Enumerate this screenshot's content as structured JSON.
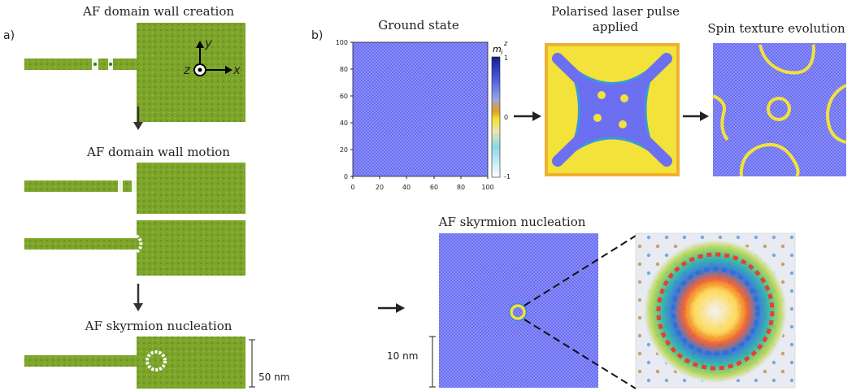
{
  "panel_a": {
    "label": "a)",
    "titles": {
      "creation": "AF domain wall creation",
      "motion": "AF domain wall motion",
      "nucleation": "AF skyrmion nucleation"
    },
    "axes": {
      "x": "x",
      "y": "y",
      "z": "z"
    },
    "scalebar": "50 nm"
  },
  "panel_b": {
    "label": "b)",
    "titles": {
      "ground": "Ground state",
      "laser_line1": "Polarised laser pulse",
      "laser_line2": "applied",
      "evolution": "Spin texture evolution",
      "nucleation": "AF skyrmion nucleation"
    },
    "axis_ticks_x": [
      "0",
      "20",
      "40",
      "60",
      "80",
      "100"
    ],
    "axis_ticks_y": [
      "0",
      "20",
      "40",
      "60",
      "80",
      "100"
    ],
    "colorbar": {
      "label": "m",
      "sub": "i",
      "sup": "z",
      "ticks": [
        "1",
        "0",
        "-1"
      ]
    },
    "scalebar": "10 nm"
  },
  "colors": {
    "film_green": "#7da52a",
    "blue_state": "#6b6ff0",
    "yellow_state": "#f2e23a",
    "orange_state": "#f0b030"
  }
}
